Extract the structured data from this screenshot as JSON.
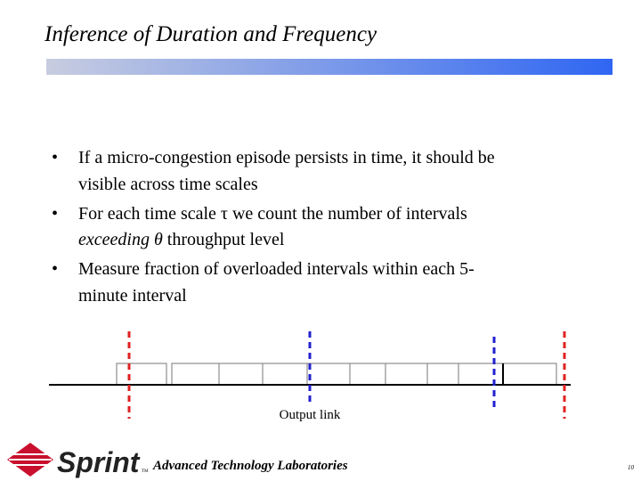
{
  "header": {
    "title": "Inference of Duration and Frequency"
  },
  "bullets": [
    [
      "If a micro-congestion episode persists in time, it should be",
      "visible across time scales"
    ],
    [
      "For each time scale τ we count the number of intervals",
      "exceeding θ",
      " throughput level"
    ],
    [
      "Measure fraction of overloaded intervals within each 5-",
      "minute interval"
    ]
  ],
  "diagram": {
    "label": "Output link"
  },
  "footer": {
    "logo": "Sprint",
    "trademark": "TM",
    "lab": "Advanced Technology Laboratories",
    "page": "10"
  }
}
